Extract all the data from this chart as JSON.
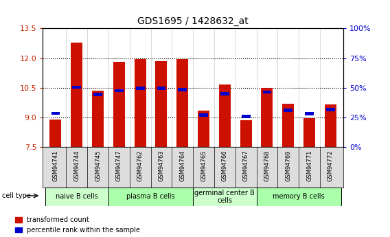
{
  "title": "GDS1695 / 1428632_at",
  "samples": [
    "GSM94741",
    "GSM94744",
    "GSM94745",
    "GSM94747",
    "GSM94762",
    "GSM94763",
    "GSM94764",
    "GSM94765",
    "GSM94766",
    "GSM94767",
    "GSM94768",
    "GSM94769",
    "GSM94771",
    "GSM94772"
  ],
  "red_values": [
    8.9,
    12.8,
    10.35,
    11.8,
    11.95,
    11.85,
    11.95,
    9.35,
    10.65,
    8.85,
    10.5,
    9.7,
    8.95,
    9.65
  ],
  "blue_values": [
    9.2,
    10.52,
    10.15,
    10.35,
    10.47,
    10.47,
    10.4,
    9.1,
    10.2,
    9.05,
    10.28,
    9.35,
    9.18,
    9.4
  ],
  "ymin": 7.5,
  "ymax": 13.5,
  "yticks": [
    7.5,
    9.0,
    10.5,
    12.0,
    13.5
  ],
  "right_yticks": [
    0,
    25,
    50,
    75,
    100
  ],
  "right_ytick_labels": [
    "0%",
    "25%",
    "50%",
    "75%",
    "100%"
  ],
  "cell_groups": [
    {
      "label": "naive B cells",
      "start": 0,
      "end": 3,
      "color": "#ccffcc"
    },
    {
      "label": "plasma B cells",
      "start": 3,
      "end": 7,
      "color": "#aaffaa"
    },
    {
      "label": "germinal center B\ncells",
      "start": 7,
      "end": 10,
      "color": "#ccffcc"
    },
    {
      "label": "memory B cells",
      "start": 10,
      "end": 14,
      "color": "#aaffaa"
    }
  ],
  "bar_color": "#cc1100",
  "blue_color": "#0000cc",
  "bg_color": "#ffffff",
  "left_label_color": "#cc2200",
  "right_label_color": "#0000cc",
  "bar_width": 0.55,
  "legend_items": [
    "transformed count",
    "percentile rank within the sample"
  ],
  "tick_label_color": "#cc2200"
}
